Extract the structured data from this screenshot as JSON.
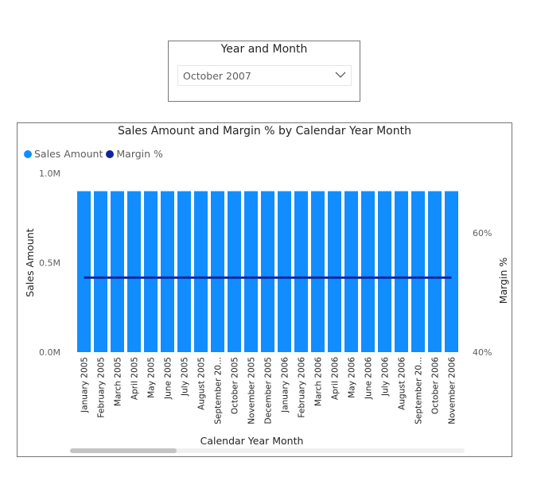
{
  "slicer": {
    "title": "Year and Month",
    "selected": "October 2007",
    "chevron_icon": "chevron-down-icon"
  },
  "colors": {
    "bar": "#118DFF",
    "line": "#12239E",
    "axis_text": "#605e5c",
    "title_text": "#252423"
  },
  "chart_data": {
    "type": "bar",
    "title": "Sales Amount and Margin % by Calendar Year Month",
    "xlabel": "Calendar Year Month",
    "ylabel": "Sales Amount",
    "y2label": "Margin %",
    "legend_position": "top-left",
    "grid": false,
    "ylim": [
      0,
      1000000
    ],
    "y2lim": [
      40,
      60
    ],
    "yticks": [
      "0.0M",
      "0.5M",
      "1.0M"
    ],
    "y2ticks": [
      "40%",
      "60%"
    ],
    "categories": [
      "January 2005",
      "February 2005",
      "March 2005",
      "April 2005",
      "May 2005",
      "June 2005",
      "July 2005",
      "August 2005",
      "September 20...",
      "October 2005",
      "November 2005",
      "December 2005",
      "January 2006",
      "February 2006",
      "March 2006",
      "April 2006",
      "May 2006",
      "June 2006",
      "July 2006",
      "August 2006",
      "September 20...",
      "October 2006",
      "November 2006"
    ],
    "series": [
      {
        "name": "Sales Amount",
        "kind": "bar",
        "axis": "left",
        "values": [
          900000,
          900000,
          900000,
          900000,
          900000,
          900000,
          900000,
          900000,
          900000,
          900000,
          900000,
          900000,
          900000,
          900000,
          900000,
          900000,
          900000,
          900000,
          900000,
          900000,
          900000,
          900000,
          900000
        ]
      },
      {
        "name": "Margin %",
        "kind": "line",
        "axis": "right",
        "values": [
          52.5,
          52.5,
          52.5,
          52.5,
          52.5,
          52.5,
          52.5,
          52.5,
          52.5,
          52.5,
          52.5,
          52.5,
          52.5,
          52.5,
          52.5,
          52.5,
          52.5,
          52.5,
          52.5,
          52.5,
          52.5,
          52.5,
          52.5
        ]
      }
    ]
  }
}
